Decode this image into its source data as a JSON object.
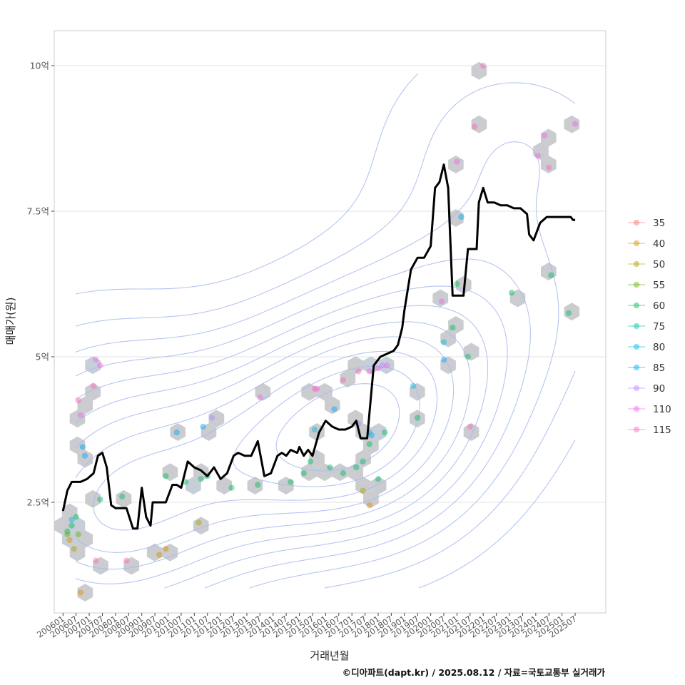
{
  "chart_data": {
    "type": "line",
    "xlabel": "거래년월",
    "ylabel": "매매가(원)",
    "caption": "©디아파트(dapt.kr) / 2025.08.12 / 자료=국토교통부 실거래가",
    "x_range": [
      "2005-09",
      "2026-09"
    ],
    "ylim": [
      0.6,
      10.6
    ],
    "grid": true,
    "legend_position": "right",
    "x_ticks": [
      "200601",
      "200607",
      "200701",
      "200707",
      "200801",
      "200807",
      "200901",
      "200907",
      "201001",
      "201007",
      "201101",
      "201107",
      "201201",
      "201207",
      "201301",
      "201307",
      "201401",
      "201407",
      "201501",
      "201507",
      "201601",
      "201607",
      "201701",
      "201707",
      "201801",
      "201807",
      "201901",
      "201907",
      "202001",
      "202007",
      "202101",
      "202107",
      "202201",
      "202207",
      "202301",
      "202307",
      "202401",
      "202407",
      "202501",
      "202507"
    ],
    "y_ticks": [
      {
        "value": 2.5,
        "label": "2.5억"
      },
      {
        "value": 5,
        "label": "5억"
      },
      {
        "value": 7.5,
        "label": "7.5억"
      },
      {
        "value": 10,
        "label": "10억"
      }
    ],
    "legend": [
      {
        "label": "35",
        "color": "#F8766D"
      },
      {
        "label": "40",
        "color": "#DB8E00"
      },
      {
        "label": "50",
        "color": "#AEA200"
      },
      {
        "label": "55",
        "color": "#64B200"
      },
      {
        "label": "60",
        "color": "#00BD5C"
      },
      {
        "label": "75",
        "color": "#00C1A7"
      },
      {
        "label": "80",
        "color": "#00BADE"
      },
      {
        "label": "85",
        "color": "#00A6FF"
      },
      {
        "label": "90",
        "color": "#B385FF"
      },
      {
        "label": "110",
        "color": "#EF67EB"
      },
      {
        "label": "115",
        "color": "#FF63B6"
      }
    ],
    "series": [
      {
        "type": "line",
        "color": "#000000",
        "x": [
          "2006-01",
          "2006-03",
          "2006-05",
          "2006-09",
          "2006-12",
          "2007-03",
          "2007-05",
          "2007-07",
          "2007-09",
          "2007-11",
          "2008-01",
          "2008-03",
          "2008-06",
          "2008-09",
          "2008-11",
          "2009-01",
          "2009-03",
          "2009-05",
          "2009-06",
          "2009-09",
          "2009-12",
          "2010-03",
          "2010-05",
          "2010-07",
          "2010-10",
          "2011-01",
          "2011-04",
          "2011-07",
          "2011-10",
          "2012-01",
          "2012-04",
          "2012-07",
          "2012-09",
          "2012-12",
          "2013-03",
          "2013-06",
          "2013-09",
          "2013-12",
          "2014-03",
          "2014-05",
          "2014-07",
          "2014-09",
          "2014-12",
          "2015-01",
          "2015-03",
          "2015-05",
          "2015-07",
          "2015-10",
          "2016-01",
          "2016-04",
          "2016-07",
          "2016-10",
          "2017-01",
          "2017-03",
          "2017-05",
          "2017-08",
          "2017-11",
          "2018-02",
          "2018-05",
          "2018-08",
          "2018-10",
          "2018-12",
          "2019-01",
          "2019-04",
          "2019-07",
          "2019-10",
          "2020-01",
          "2020-03",
          "2020-05",
          "2020-07",
          "2020-09",
          "2020-11",
          "2021-01",
          "2021-04",
          "2021-06",
          "2021-08",
          "2021-10",
          "2021-11",
          "2022-01",
          "2022-03",
          "2022-06",
          "2022-09",
          "2022-12",
          "2023-03",
          "2023-06",
          "2023-09",
          "2023-10",
          "2023-12",
          "2024-03",
          "2024-06",
          "2024-09",
          "2024-12",
          "2025-03",
          "2025-05",
          "2025-06",
          "2025-07"
        ],
        "y": [
          2.35,
          2.7,
          2.85,
          2.85,
          2.9,
          3.0,
          3.3,
          3.35,
          3.1,
          2.45,
          2.4,
          2.4,
          2.4,
          2.05,
          2.05,
          2.75,
          2.25,
          2.1,
          2.5,
          2.5,
          2.5,
          2.8,
          2.8,
          2.75,
          3.2,
          3.1,
          3.05,
          2.95,
          3.1,
          2.9,
          3.0,
          3.3,
          3.35,
          3.3,
          3.3,
          3.55,
          2.95,
          3.0,
          3.3,
          3.35,
          3.3,
          3.4,
          3.35,
          3.45,
          3.3,
          3.4,
          3.3,
          3.7,
          3.9,
          3.8,
          3.75,
          3.75,
          3.8,
          3.9,
          3.6,
          3.6,
          4.85,
          5.0,
          5.05,
          5.1,
          5.2,
          5.5,
          5.8,
          6.5,
          6.7,
          6.7,
          6.9,
          7.9,
          8.0,
          8.3,
          7.9,
          6.05,
          6.05,
          6.05,
          6.85,
          6.85,
          6.85,
          7.65,
          7.9,
          7.65,
          7.65,
          7.6,
          7.6,
          7.55,
          7.55,
          7.45,
          7.1,
          7.0,
          7.3,
          7.4,
          7.4,
          7.4,
          7.4,
          7.4,
          7.35,
          7.35
        ]
      },
      {
        "type": "scatter",
        "name": "60",
        "color": "#00BD5C",
        "x": [
          "2006-03",
          "2006-05",
          "2006-07",
          "2007-06",
          "2008-04",
          "2009-12",
          "2010-09",
          "2011-04",
          "2011-07",
          "2012-06",
          "2013-06",
          "2014-09",
          "2015-03",
          "2015-06",
          "2016-03",
          "2016-09",
          "2017-03",
          "2017-06",
          "2017-09",
          "2018-01",
          "2018-04",
          "2019-07",
          "2020-11",
          "2021-01",
          "2021-06",
          "2023-02",
          "2024-08",
          "2025-04"
        ],
        "y": [
          2.0,
          2.1,
          2.25,
          2.55,
          2.6,
          2.95,
          2.85,
          2.9,
          2.95,
          2.75,
          2.8,
          2.85,
          3.0,
          3.2,
          3.1,
          3.0,
          3.1,
          3.2,
          3.5,
          2.9,
          3.7,
          3.95,
          5.5,
          6.25,
          5.0,
          6.1,
          6.4,
          5.75
        ]
      },
      {
        "type": "scatter",
        "name": "110",
        "color": "#EF67EB",
        "x": [
          "2006-09",
          "2007-04",
          "2007-06",
          "2013-07",
          "2015-09",
          "2017-09",
          "2018-01",
          "2018-05",
          "2020-06",
          "2021-01",
          "2024-02",
          "2024-05",
          "2025-07"
        ],
        "y": [
          4.0,
          4.95,
          4.85,
          4.3,
          4.45,
          4.75,
          4.8,
          4.85,
          5.95,
          8.35,
          8.45,
          8.8,
          9.0
        ]
      },
      {
        "type": "scatter",
        "name": "85",
        "color": "#00A6FF",
        "x": [
          "2006-10",
          "2006-11",
          "2010-05",
          "2011-05",
          "2016-05",
          "2017-10",
          "2020-07",
          "2021-03"
        ],
        "y": [
          3.45,
          3.3,
          3.7,
          3.8,
          4.1,
          3.65,
          4.95,
          7.4
        ]
      },
      {
        "type": "scatter",
        "name": "115",
        "color": "#FF63B6",
        "x": [
          "2006-08",
          "2007-03",
          "2007-04",
          "2008-06",
          "2015-08",
          "2016-09",
          "2017-04",
          "2021-07",
          "2021-09",
          "2022-01",
          "2024-07"
        ],
        "y": [
          4.25,
          4.5,
          1.5,
          1.5,
          4.45,
          4.6,
          4.75,
          3.8,
          8.95,
          10.0,
          8.25
        ]
      },
      {
        "type": "scatter",
        "name": "40",
        "color": "#DB8E00",
        "x": [
          "2006-04",
          "2006-09",
          "2009-09",
          "2009-12",
          "2017-09"
        ],
        "y": [
          1.85,
          0.95,
          1.6,
          1.7,
          2.45
        ]
      },
      {
        "type": "scatter",
        "name": "50",
        "color": "#AEA200",
        "x": [
          "2006-06",
          "2011-03",
          "2017-06"
        ],
        "y": [
          1.7,
          2.15,
          2.7
        ]
      },
      {
        "type": "scatter",
        "name": "55",
        "color": "#64B200",
        "x": [
          "2006-03",
          "2006-08"
        ],
        "y": [
          1.95,
          1.95
        ]
      },
      {
        "type": "scatter",
        "name": "80",
        "color": "#00BADE",
        "x": [
          "2006-05",
          "2015-08",
          "2017-09",
          "2019-05",
          "2020-07"
        ],
        "y": [
          2.2,
          3.75,
          3.7,
          4.5,
          5.25
        ]
      },
      {
        "type": "scatter",
        "name": "90",
        "color": "#B385FF",
        "x": [
          "2011-09",
          "2017-04",
          "2018-03"
        ],
        "y": [
          3.95,
          3.85,
          4.85
        ]
      }
    ]
  }
}
